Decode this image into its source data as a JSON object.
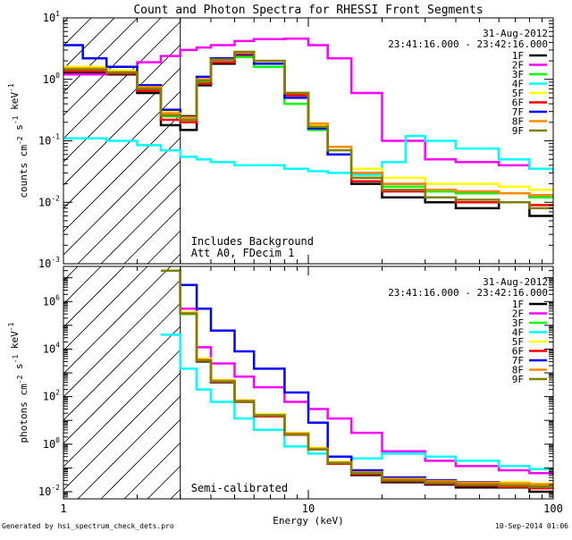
{
  "page_title": "Count and Photon Spectra for RHESSI Front Segments",
  "footer": {
    "generated_by": "Generated by hsi_spectrum_check_dets.pro",
    "generated_date": "10-Sep-2014 01:06"
  },
  "chart_data": [
    {
      "type": "line",
      "panel": "count",
      "title": "Count and Photon Spectra for RHESSI Front Segments",
      "xlabel": "Energy (keV)",
      "ylabel": "counts cm^-2 s^-1 keV^-1",
      "xscale": "log",
      "yscale": "log",
      "xlim": [
        1,
        100
      ],
      "ylim": [
        0.001,
        10
      ],
      "x_ticks": [
        1,
        10,
        100
      ],
      "y_ticks": [
        {
          "value": 0.001,
          "exp": "-3"
        },
        {
          "value": 0.01,
          "exp": "-2"
        },
        {
          "value": 0.1,
          "exp": "-1"
        },
        {
          "value": 1,
          "exp": "0"
        },
        {
          "value": 10,
          "exp": "1"
        }
      ],
      "attenuator_cutoff_kev": 3,
      "date": "31-Aug-2012",
      "time_range": "23:41:16.000 - 23:42:16.000",
      "annotations": [
        "Includes Background",
        "Att A0, FDecim 1"
      ],
      "legend_position": "top-right",
      "series": [
        {
          "name": "1F",
          "color": "#000000",
          "x": [
            1.0,
            1.5,
            2.0,
            2.5,
            3.0,
            3.5,
            4.0,
            5.0,
            6.0,
            8.0,
            10.0,
            12.0,
            15.0,
            20.0,
            30.0,
            40.0,
            60.0,
            80.0,
            100.0
          ],
          "y": [
            1.3,
            1.2,
            0.6,
            0.18,
            0.15,
            0.8,
            1.8,
            2.4,
            1.8,
            0.6,
            0.16,
            0.06,
            0.02,
            0.012,
            0.01,
            0.008,
            0.01,
            0.006,
            0.006
          ]
        },
        {
          "name": "2F",
          "color": "#ff00ff",
          "x": [
            1.0,
            1.5,
            2.0,
            2.5,
            3.0,
            3.5,
            4.0,
            5.0,
            6.0,
            8.0,
            10.0,
            12.0,
            15.0,
            20.0,
            30.0,
            40.0,
            60.0,
            80.0,
            100.0
          ],
          "y": [
            1.2,
            1.6,
            1.9,
            2.4,
            3.0,
            3.3,
            3.6,
            4.2,
            4.5,
            4.6,
            3.6,
            2.2,
            0.6,
            0.1,
            0.05,
            0.045,
            0.04,
            0.035,
            0.032
          ]
        },
        {
          "name": "3F",
          "color": "#00ff00",
          "x": [
            1.0,
            1.5,
            2.0,
            2.5,
            3.0,
            3.5,
            4.0,
            5.0,
            6.0,
            8.0,
            10.0,
            12.0,
            15.0,
            20.0,
            30.0,
            40.0,
            60.0,
            80.0,
            100.0
          ],
          "y": [
            1.4,
            1.3,
            0.7,
            0.25,
            0.22,
            0.9,
            1.9,
            2.3,
            1.6,
            0.4,
            0.15,
            0.06,
            0.025,
            0.018,
            0.015,
            0.014,
            0.014,
            0.012,
            0.012
          ]
        },
        {
          "name": "4F",
          "color": "#00ffff",
          "x": [
            1.0,
            1.5,
            2.0,
            2.5,
            3.0,
            3.5,
            4.0,
            5.0,
            6.0,
            8.0,
            10.0,
            12.0,
            15.0,
            20.0,
            25.0,
            30.0,
            40.0,
            60.0,
            80.0,
            100.0
          ],
          "y": [
            0.11,
            0.1,
            0.085,
            0.07,
            0.055,
            0.05,
            0.045,
            0.04,
            0.04,
            0.035,
            0.032,
            0.03,
            0.028,
            0.045,
            0.12,
            0.1,
            0.075,
            0.05,
            0.035,
            0.03
          ]
        },
        {
          "name": "5F",
          "color": "#ffff00",
          "x": [
            1.0,
            1.5,
            2.0,
            2.5,
            3.0,
            3.5,
            4.0,
            5.0,
            6.0,
            8.0,
            10.0,
            12.0,
            15.0,
            20.0,
            30.0,
            40.0,
            60.0,
            80.0,
            100.0
          ],
          "y": [
            1.6,
            1.4,
            0.8,
            0.3,
            0.26,
            1.0,
            2.2,
            2.8,
            2.0,
            0.6,
            0.18,
            0.08,
            0.035,
            0.025,
            0.02,
            0.02,
            0.018,
            0.016,
            0.016
          ]
        },
        {
          "name": "6F",
          "color": "#ff0000",
          "x": [
            1.0,
            1.5,
            2.0,
            2.5,
            3.0,
            3.5,
            4.0,
            5.0,
            6.0,
            8.0,
            10.0,
            12.0,
            15.0,
            20.0,
            30.0,
            40.0,
            60.0,
            80.0,
            100.0
          ],
          "y": [
            1.35,
            1.25,
            0.65,
            0.22,
            0.2,
            0.85,
            1.9,
            2.5,
            1.8,
            0.55,
            0.16,
            0.06,
            0.022,
            0.015,
            0.012,
            0.01,
            0.01,
            0.009,
            0.009
          ]
        },
        {
          "name": "7F",
          "color": "#0000ff",
          "x": [
            1.0,
            1.2,
            1.5,
            2.0,
            2.5,
            3.0,
            3.5,
            4.0,
            5.0,
            6.0,
            8.0,
            10.0,
            12.0,
            15.0,
            20.0,
            30.0,
            40.0,
            60.0,
            80.0,
            100.0
          ],
          "y": [
            3.6,
            2.2,
            1.6,
            0.8,
            0.32,
            0.25,
            1.1,
            2.2,
            2.6,
            1.8,
            0.5,
            0.16,
            0.06,
            0.03,
            0.02,
            0.016,
            0.015,
            0.014,
            0.013,
            0.013
          ]
        },
        {
          "name": "8F",
          "color": "#ff8c00",
          "x": [
            1.0,
            1.5,
            2.0,
            2.5,
            3.0,
            3.5,
            4.0,
            5.0,
            6.0,
            8.0,
            10.0,
            12.0,
            15.0,
            20.0,
            30.0,
            40.0,
            60.0,
            80.0,
            100.0
          ],
          "y": [
            1.5,
            1.3,
            0.75,
            0.28,
            0.24,
            1.0,
            2.1,
            2.7,
            2.0,
            0.6,
            0.19,
            0.08,
            0.03,
            0.02,
            0.016,
            0.015,
            0.014,
            0.013,
            0.013
          ]
        },
        {
          "name": "9F",
          "color": "#808000",
          "x": [
            1.0,
            1.5,
            2.0,
            2.5,
            3.0,
            3.5,
            4.0,
            5.0,
            6.0,
            8.0,
            10.0,
            12.0,
            15.0,
            20.0,
            30.0,
            40.0,
            60.0,
            80.0,
            100.0
          ],
          "y": [
            1.45,
            1.3,
            0.7,
            0.26,
            0.22,
            0.95,
            2.1,
            2.8,
            2.0,
            0.6,
            0.17,
            0.07,
            0.025,
            0.016,
            0.012,
            0.011,
            0.01,
            0.008,
            0.008
          ]
        }
      ]
    },
    {
      "type": "line",
      "panel": "photon",
      "title": "",
      "xlabel": "Energy (keV)",
      "ylabel": "photons cm^-2 s^-1 keV^-1",
      "xscale": "log",
      "yscale": "log",
      "xlim": [
        1,
        100
      ],
      "ylim": [
        0.005,
        30000000
      ],
      "x_ticks": [
        {
          "value": 1,
          "label": "1"
        },
        {
          "value": 10,
          "label": "10"
        },
        {
          "value": 100,
          "label": "100"
        }
      ],
      "y_ticks": [
        {
          "value": 0.01,
          "exp": "-2"
        },
        {
          "value": 1,
          "exp": "0"
        },
        {
          "value": 100,
          "exp": "2"
        },
        {
          "value": 10000,
          "exp": "4"
        },
        {
          "value": 1000000,
          "exp": "6"
        }
      ],
      "attenuator_cutoff_kev": 3,
      "date": "31-Aug-2012",
      "time_range": "23:41:16.000 - 23:42:16.000",
      "annotations": [
        "Semi-calibrated"
      ],
      "legend_position": "top-right",
      "series": [
        {
          "name": "1F",
          "color": "#000000",
          "x": [
            2.5,
            3.0,
            3.5,
            4.0,
            5.0,
            6.0,
            8.0,
            10.0,
            12.0,
            15.0,
            20.0,
            30.0,
            40.0,
            60.0,
            80.0,
            100.0
          ],
          "y": [
            20000000,
            300000,
            3000,
            400,
            60,
            15,
            2.5,
            0.6,
            0.15,
            0.05,
            0.025,
            0.02,
            0.015,
            0.015,
            0.01,
            0.01
          ]
        },
        {
          "name": "2F",
          "color": "#ff00ff",
          "x": [
            2.5,
            3.0,
            3.5,
            4.0,
            5.0,
            6.0,
            8.0,
            10.0,
            12.0,
            15.0,
            20.0,
            30.0,
            40.0,
            60.0,
            80.0,
            100.0
          ],
          "y": [
            20000000,
            500000,
            12000,
            2500,
            700,
            250,
            60,
            30,
            12,
            3,
            0.5,
            0.2,
            0.12,
            0.08,
            0.06,
            0.05
          ]
        },
        {
          "name": "3F",
          "color": "#00ff00",
          "x": [
            2.5,
            3.0,
            3.5,
            4.0,
            5.0,
            6.0,
            8.0,
            10.0,
            12.0,
            15.0,
            20.0,
            30.0,
            40.0,
            60.0,
            80.0,
            100.0
          ],
          "y": [
            20000000,
            300000,
            3500,
            450,
            65,
            16,
            2.5,
            0.6,
            0.15,
            0.06,
            0.03,
            0.025,
            0.02,
            0.02,
            0.018,
            0.018
          ]
        },
        {
          "name": "4F",
          "color": "#00ffff",
          "x": [
            2.5,
            3.0,
            3.5,
            4.0,
            5.0,
            6.0,
            8.0,
            10.0,
            12.0,
            15.0,
            20.0,
            30.0,
            40.0,
            60.0,
            80.0,
            100.0
          ],
          "y": [
            40000,
            1500,
            200,
            60,
            12,
            4,
            0.8,
            0.4,
            0.3,
            0.25,
            0.4,
            0.3,
            0.2,
            0.12,
            0.09,
            0.08
          ]
        },
        {
          "name": "5F",
          "color": "#ffff00",
          "x": [
            2.5,
            3.0,
            3.5,
            4.0,
            5.0,
            6.0,
            8.0,
            10.0,
            12.0,
            15.0,
            20.0,
            30.0,
            40.0,
            60.0,
            80.0,
            100.0
          ],
          "y": [
            20000000,
            350000,
            4000,
            500,
            70,
            18,
            3,
            0.7,
            0.18,
            0.07,
            0.04,
            0.03,
            0.025,
            0.025,
            0.022,
            0.02
          ]
        },
        {
          "name": "6F",
          "color": "#ff0000",
          "x": [
            2.5,
            3.0,
            3.5,
            4.0,
            5.0,
            6.0,
            8.0,
            10.0,
            12.0,
            15.0,
            20.0,
            30.0,
            40.0,
            60.0,
            80.0,
            100.0
          ],
          "y": [
            20000000,
            320000,
            3200,
            420,
            62,
            15,
            2.5,
            0.6,
            0.15,
            0.055,
            0.028,
            0.022,
            0.018,
            0.016,
            0.014,
            0.014
          ]
        },
        {
          "name": "7F",
          "color": "#0000ff",
          "x": [
            2.5,
            3.0,
            3.5,
            4.0,
            5.0,
            6.0,
            8.0,
            10.0,
            12.0,
            15.0,
            20.0,
            30.0,
            40.0,
            60.0,
            80.0,
            100.0
          ],
          "y": [
            20000000,
            5000000,
            500000,
            60000,
            8000,
            1500,
            150,
            8,
            0.3,
            0.08,
            0.04,
            0.03,
            0.025,
            0.022,
            0.02,
            0.02
          ]
        },
        {
          "name": "8F",
          "color": "#ff8c00",
          "x": [
            2.5,
            3.0,
            3.5,
            4.0,
            5.0,
            6.0,
            8.0,
            10.0,
            12.0,
            15.0,
            20.0,
            30.0,
            40.0,
            60.0,
            80.0,
            100.0
          ],
          "y": [
            20000000,
            330000,
            3600,
            470,
            68,
            17,
            2.8,
            0.65,
            0.17,
            0.065,
            0.035,
            0.028,
            0.024,
            0.022,
            0.02,
            0.02
          ]
        },
        {
          "name": "9F",
          "color": "#808000",
          "x": [
            2.5,
            3.0,
            3.5,
            4.0,
            5.0,
            6.0,
            8.0,
            10.0,
            12.0,
            15.0,
            20.0,
            30.0,
            40.0,
            60.0,
            80.0,
            100.0
          ],
          "y": [
            20000000,
            310000,
            3300,
            430,
            63,
            16,
            2.6,
            0.6,
            0.16,
            0.06,
            0.03,
            0.024,
            0.02,
            0.018,
            0.016,
            0.016
          ]
        }
      ]
    }
  ]
}
